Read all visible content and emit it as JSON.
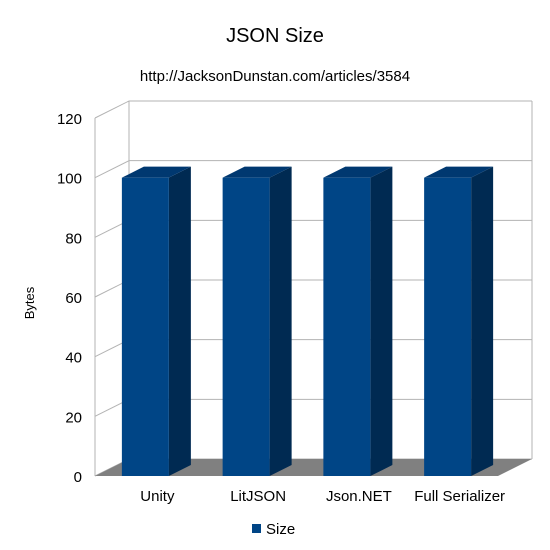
{
  "chart_data": {
    "type": "bar",
    "title": "JSON Size",
    "subtitle": "http://JacksonDunstan.com/articles/3584",
    "xlabel": "",
    "ylabel": "Bytes",
    "categories": [
      "Unity",
      "LitJSON",
      "Json.NET",
      "Full Serializer"
    ],
    "series": [
      {
        "name": "Size",
        "values": [
          100,
          100,
          100,
          100
        ]
      }
    ],
    "ylim": [
      0,
      120
    ],
    "yticks": [
      "0",
      "20",
      "40",
      "60",
      "80",
      "100",
      "120"
    ],
    "grid": true,
    "three_d": true,
    "legend": "bottom",
    "colors": {
      "bar_front": "#004586",
      "bar_side": "#002a52",
      "bar_top": "#003870",
      "floor": "#808080",
      "grid": "#b3b3b3"
    }
  }
}
